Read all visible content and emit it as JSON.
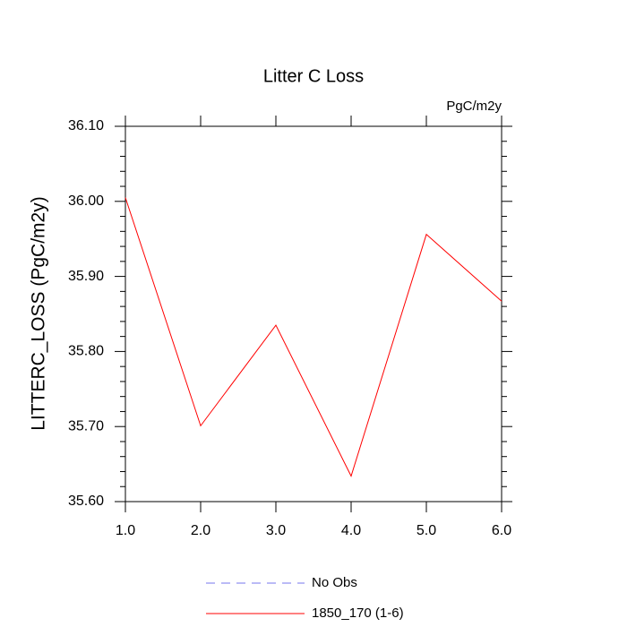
{
  "chart_data": {
    "type": "line",
    "title": "Litter C Loss",
    "units_label": "PgC/m2y",
    "y_label": "LITTERC_LOSS  (PgC/m2y)",
    "x": [
      1,
      2,
      3,
      4,
      5,
      6
    ],
    "series": [
      {
        "name": "1850_170 (1-6)",
        "color": "#ff0000",
        "values": [
          36.005,
          35.701,
          35.835,
          35.634,
          35.956,
          35.867
        ]
      }
    ],
    "legend_only": [
      {
        "name": "No Obs",
        "color": "#7777ee",
        "dashed": true
      }
    ],
    "xlim": [
      1,
      6
    ],
    "xticks": [
      {
        "value": 1,
        "label": "1.0"
      },
      {
        "value": 2,
        "label": "2.0"
      },
      {
        "value": 3,
        "label": "3.0"
      },
      {
        "value": 4,
        "label": "4.0"
      },
      {
        "value": 5,
        "label": "5.0"
      },
      {
        "value": 6,
        "label": "6.0"
      }
    ],
    "ylim": [
      35.6,
      36.1
    ],
    "yticks": [
      {
        "value": 35.6,
        "label": "35.60"
      },
      {
        "value": 35.7,
        "label": "35.70"
      },
      {
        "value": 35.8,
        "label": "35.80"
      },
      {
        "value": 35.9,
        "label": "35.90"
      },
      {
        "value": 36.0,
        "label": "36.00"
      },
      {
        "value": 36.1,
        "label": "36.10"
      }
    ]
  }
}
